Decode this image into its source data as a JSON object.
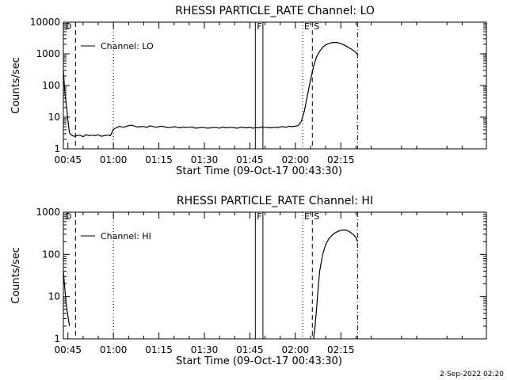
{
  "footer": {
    "date_stamp": "2-Sep-2022 02:20"
  },
  "colors": {
    "background": "#ffffff",
    "foreground": "#000000"
  },
  "chart_data": [
    {
      "type": "line",
      "title": "RHESSI PARTICLE_RATE Channel: LO",
      "xlabel": "Start Time (09-Oct-17 00:43:30)",
      "ylabel": "Counts/sec",
      "yscale": "log",
      "ylim": [
        1,
        10000
      ],
      "xlim_min": [
        43.5,
        183
      ],
      "x_ticks_min": [
        45,
        60,
        75,
        90,
        105,
        120,
        135
      ],
      "x_tick_labels": [
        "00:45",
        "01:00",
        "01:15",
        "01:30",
        "01:45",
        "02:00",
        "02:15"
      ],
      "y_ticks": [
        1,
        10,
        100,
        1000,
        10000
      ],
      "y_tick_labels": [
        "1",
        "10",
        "100",
        "1000",
        "10000"
      ],
      "legend": "top-left",
      "series": [
        {
          "name": "Channel: LO",
          "x_min": [
            43.5,
            44,
            44.5,
            45,
            45.5,
            46,
            46.5,
            47,
            48,
            49,
            50,
            51,
            52,
            53,
            54,
            55,
            56,
            57,
            58,
            59,
            60,
            61,
            62,
            63,
            64,
            65,
            66,
            67,
            68,
            69,
            70,
            71,
            72,
            73,
            74,
            75,
            76,
            77,
            78,
            79,
            80,
            81,
            82,
            83,
            84,
            85,
            86,
            87,
            88,
            89,
            90,
            91,
            92,
            93,
            94,
            95,
            96,
            97,
            98,
            99,
            100,
            101,
            102,
            103,
            104,
            105,
            106,
            107,
            108,
            109,
            110,
            111,
            112,
            113,
            114,
            115,
            116,
            117,
            118,
            119,
            120,
            121,
            122,
            123,
            124,
            125,
            126,
            127,
            128,
            129,
            130,
            131,
            132,
            133,
            134,
            135,
            136,
            137,
            138,
            139,
            140,
            140.5
          ],
          "y": [
            300,
            60,
            25,
            8,
            3.2,
            2.8,
            2.6,
            2.5,
            2.6,
            2.7,
            2.4,
            2.8,
            2.6,
            2.7,
            2.6,
            2.8,
            2.5,
            2.6,
            2.7,
            2.6,
            4.2,
            4.6,
            5.2,
            4.8,
            5.0,
            5.4,
            5.6,
            5.2,
            4.9,
            5.0,
            5.1,
            4.7,
            5.3,
            5.1,
            4.8,
            5.0,
            5.2,
            4.9,
            4.7,
            4.8,
            5.0,
            4.8,
            4.6,
            4.9,
            4.7,
            4.8,
            4.9,
            4.5,
            4.6,
            4.8,
            4.7,
            4.5,
            4.6,
            4.8,
            4.7,
            4.5,
            4.9,
            4.6,
            4.7,
            4.8,
            4.6,
            4.5,
            4.9,
            4.7,
            4.6,
            4.8,
            4.5,
            4.7,
            4.6,
            4.9,
            4.8,
            4.7,
            4.6,
            4.8,
            4.7,
            4.9,
            5.0,
            4.8,
            5.2,
            5.0,
            5.2,
            5.5,
            7.5,
            16,
            50,
            150,
            400,
            800,
            1200,
            1600,
            1900,
            2100,
            2250,
            2300,
            2250,
            2100,
            1900,
            1700,
            1500,
            1300,
            1100,
            950
          ]
        }
      ],
      "markers": [
        {
          "label": "D",
          "style": "dotted",
          "x_min": 43.5
        },
        {
          "label": "",
          "style": "dashed",
          "x_min": 47.5
        },
        {
          "label": "",
          "style": "dotted",
          "x_min": 60
        },
        {
          "label": "F",
          "style": "solid",
          "x_min": 106.8
        },
        {
          "label": "",
          "style": "solid",
          "x_min": 109.3
        },
        {
          "label": "E",
          "style": "dotted",
          "x_min": 122.4
        },
        {
          "label": "S",
          "style": "dashed",
          "x_min": 125.6
        },
        {
          "label": "",
          "style": "dashdot",
          "x_min": 140.5
        }
      ]
    },
    {
      "type": "line",
      "title": "RHESSI PARTICLE_RATE Channel: HI",
      "xlabel": "Start Time (09-Oct-17 00:43:30)",
      "ylabel": "Counts/sec",
      "yscale": "log",
      "ylim": [
        1,
        1000
      ],
      "xlim_min": [
        43.5,
        183
      ],
      "x_ticks_min": [
        45,
        60,
        75,
        90,
        105,
        120,
        135
      ],
      "x_tick_labels": [
        "00:45",
        "01:00",
        "01:15",
        "01:30",
        "01:45",
        "02:00",
        "02:15"
      ],
      "y_ticks": [
        1,
        10,
        100,
        1000
      ],
      "y_tick_labels": [
        "1",
        "10",
        "100",
        "1000"
      ],
      "legend": "top-left",
      "series": [
        {
          "name": "Channel: HI",
          "x_min": [
            43.5,
            44,
            44.5,
            45,
            45.5
          ],
          "y": [
            40,
            15,
            6,
            3.5,
            2
          ]
        },
        {
          "name": "",
          "x_min": [
            126,
            126.5,
            127,
            127.5,
            128,
            129,
            130,
            131,
            132,
            133,
            134,
            135,
            136,
            137,
            138,
            139,
            140,
            140.5
          ],
          "y": [
            1,
            2,
            5,
            15,
            40,
            100,
            170,
            230,
            280,
            320,
            350,
            370,
            380,
            370,
            340,
            300,
            250,
            200
          ]
        }
      ],
      "markers": [
        {
          "label": "D",
          "style": "dotted",
          "x_min": 43.5
        },
        {
          "label": "",
          "style": "dashed",
          "x_min": 47.5
        },
        {
          "label": "",
          "style": "dotted",
          "x_min": 60
        },
        {
          "label": "F",
          "style": "solid",
          "x_min": 106.8
        },
        {
          "label": "",
          "style": "solid",
          "x_min": 109.3
        },
        {
          "label": "E",
          "style": "dotted",
          "x_min": 122.4
        },
        {
          "label": "S",
          "style": "dashed",
          "x_min": 125.6
        },
        {
          "label": "",
          "style": "dashdot",
          "x_min": 140.5
        }
      ]
    }
  ]
}
